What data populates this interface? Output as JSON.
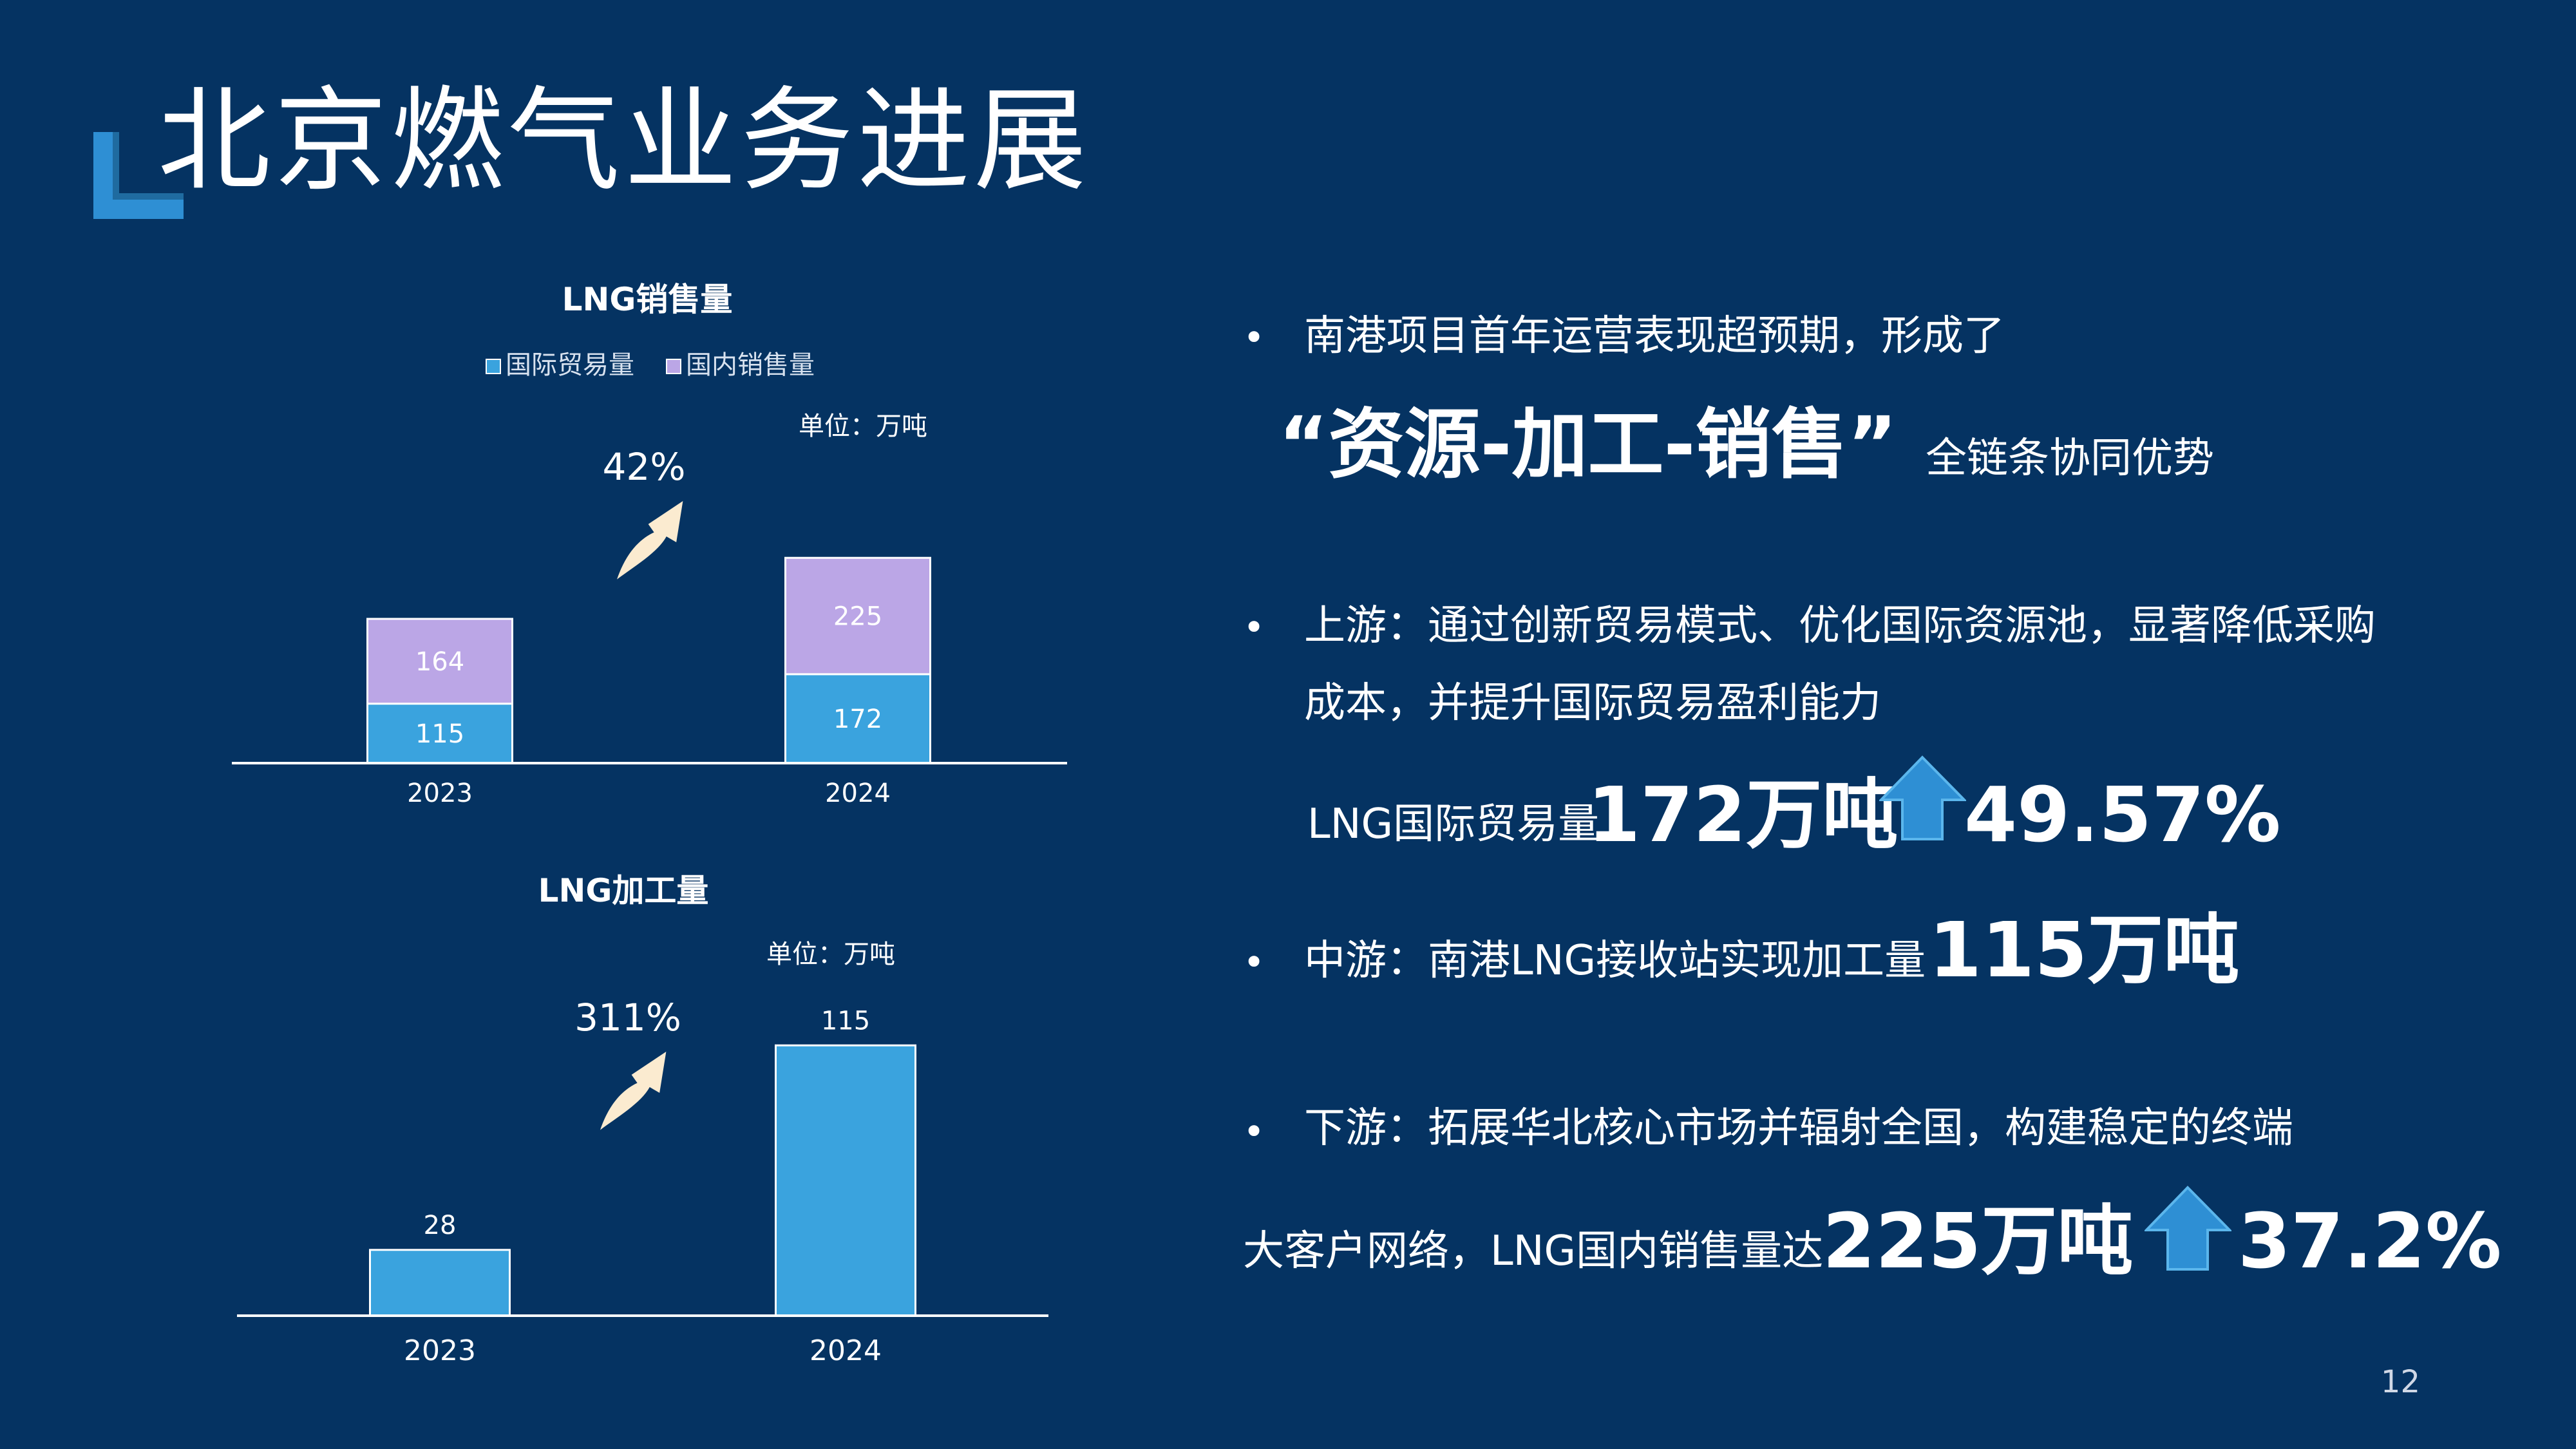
{
  "title": "北京燃气业务进展",
  "colors": {
    "background": "#053362",
    "international": "#3AA3DE",
    "domestic": "#BBA6E6",
    "arrow_up": "#2E8FD4",
    "curved_arrow": "#FBEBD0",
    "accent_corner": "#2E8FD4"
  },
  "chart_data": [
    {
      "type": "bar",
      "stacked": true,
      "title": "LNG销售量",
      "unit_note": "单位：万吨",
      "categories": [
        "2023",
        "2024"
      ],
      "series": [
        {
          "name": "国际贸易量",
          "values": [
            115,
            172
          ],
          "color": "#3AA3DE"
        },
        {
          "name": "国内销售量",
          "values": [
            164,
            225
          ],
          "color": "#BBA6E6"
        }
      ],
      "legend_position": "top",
      "growth_label": "42%",
      "grid": false
    },
    {
      "type": "bar",
      "stacked": false,
      "title": "LNG加工量",
      "unit_note": "单位：万吨",
      "categories": [
        "2023",
        "2024"
      ],
      "series": [
        {
          "values": [
            28,
            115
          ],
          "color": "#3AA3DE"
        }
      ],
      "growth_label": "311%",
      "grid": false
    }
  ],
  "bullets": {
    "b1_line1": "南港项目首年运营表现超预期，形成了",
    "b1_quote": "“资源-加工-销售”",
    "b1_tail": "全链条协同优势",
    "b2_line1": "上游：通过创新贸易模式、优化国际资源池，显著降低采购",
    "b2_line2": "成本，并提升国际贸易盈利能力",
    "b2_metric_label": "LNG国际贸易量",
    "b2_metric_value": "172万吨",
    "b2_metric_growth": "49.57%",
    "b3_prefix": "中游：南港LNG接收站实现加工量",
    "b3_value": "115万吨",
    "b4_line1": "下游：拓展华北核心市场并辐射全国，构建稳定的终端",
    "b4_line2_prefix": "大客户网络，LNG国内销售量达",
    "b4_value": "225万吨",
    "b4_growth": "37.2%",
    "bullet_symbol": "•"
  },
  "page_number": "12"
}
